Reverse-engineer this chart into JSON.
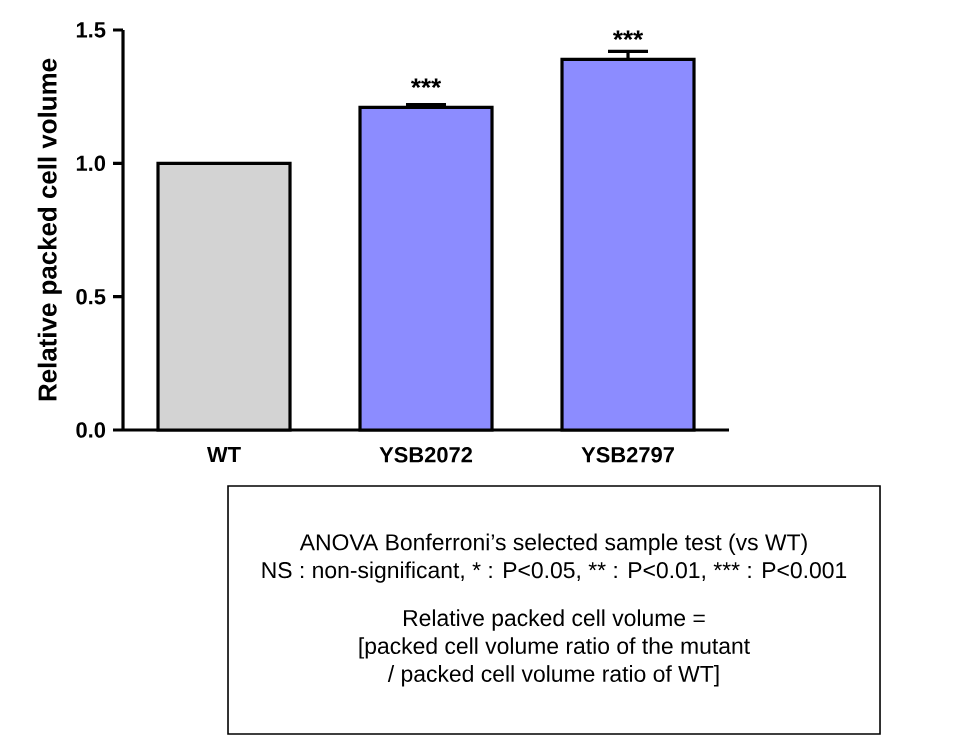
{
  "chart_data": {
    "type": "bar",
    "ylabel": "Relative packed cell volume",
    "categories": [
      "WT",
      "YSB2072",
      "YSB2797"
    ],
    "values": [
      1.0,
      1.21,
      1.39
    ],
    "errors": [
      null,
      0.01,
      0.03
    ],
    "colors": [
      "#d3d3d3",
      "#8c8cff",
      "#8c8cff"
    ],
    "ylim": [
      0,
      1.5
    ],
    "yticks": [
      {
        "value": 0,
        "label": "0.0"
      },
      0.5,
      {
        "value": 1,
        "label": "1.0"
      },
      1.5
    ],
    "annotations": [
      {
        "text": "***",
        "x": "YSB2072",
        "y": 1.25
      },
      {
        "text": "***",
        "x": "YSB2797",
        "y": 1.43
      },
      "ANOVA Bonferroni’s selected sample test (vs WT)",
      "NS : non-significant, * : P<0.05, ** : P<0.01, *** : P<0.001",
      "Relative packed cell volume =",
      "[packed cell volume ratio of the mutant",
      "/ packed cell volume ratio of WT]"
    ]
  }
}
